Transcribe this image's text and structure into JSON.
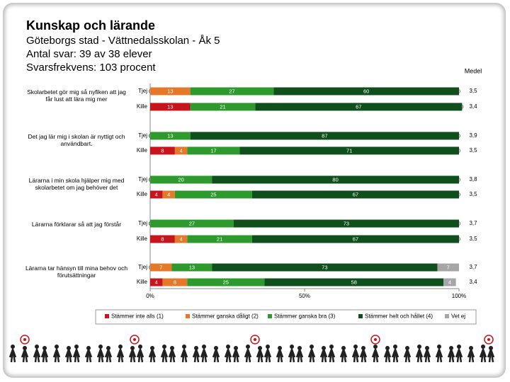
{
  "chart_data": {
    "type": "stacked-bar-horizontal",
    "title": "Kunskap och lärande",
    "subtitles": [
      "Göteborgs stad - Vättnedalsskolan - Åk 5",
      "Antal svar: 39 av 38 elever",
      "Svarsfrekvens: 103 procent"
    ],
    "mean_header": "Medel",
    "groups": [
      "Skolarbetet gör mig så nyfiken att jag får lust att lära mig mer",
      "Det jag lär mig i skolan är nyttigt och användbart.",
      "Lärarna i min skola hjälper mig med skolarbetet om jag behöver det",
      "Lärarna förklarar så att jag förstår",
      "Lärarna tar hänsyn till mina behov och förutsättningar"
    ],
    "categories": [
      "Tjej",
      "Kille",
      "Tjej",
      "Kille",
      "Tjej",
      "Kille",
      "Tjej",
      "Kille",
      "Tjej",
      "Kille"
    ],
    "series": [
      {
        "name": "Stämmer inte alls (1)",
        "color": "#c8141c",
        "values": [
          0,
          13,
          0,
          8,
          0,
          4,
          0,
          8,
          0,
          4
        ]
      },
      {
        "name": "Stämmer ganska dåligt (2)",
        "color": "#e4792c",
        "values": [
          13,
          0,
          0,
          4,
          0,
          4,
          0,
          4,
          7,
          8
        ]
      },
      {
        "name": "Stämmer ganska bra (3)",
        "color": "#2e9a2e",
        "values": [
          27,
          21,
          13,
          17,
          20,
          25,
          27,
          21,
          13,
          25
        ]
      },
      {
        "name": "Stämmer helt och hållet (4)",
        "color": "#0e4f1c",
        "values": [
          60,
          67,
          87,
          71,
          80,
          67,
          73,
          67,
          73,
          58
        ]
      },
      {
        "name": "Vet ej",
        "color": "#a6a6a6",
        "values": [
          0,
          0,
          0,
          0,
          0,
          0,
          0,
          0,
          7,
          4
        ]
      }
    ],
    "means": [
      {
        "value": 3.5,
        "label": "3,5"
      },
      {
        "value": 3.4,
        "label": "3,4"
      },
      {
        "value": 3.9,
        "label": "3,9"
      },
      {
        "value": 3.5,
        "label": "3,5"
      },
      {
        "value": 3.8,
        "label": "3,8"
      },
      {
        "value": 3.5,
        "label": "3,5"
      },
      {
        "value": 3.7,
        "label": "3,7"
      },
      {
        "value": 3.5,
        "label": "3,5"
      },
      {
        "value": 3.7,
        "label": "3,7"
      },
      {
        "value": 3.4,
        "label": "3,4"
      }
    ],
    "xlim": [
      0,
      100
    ],
    "xticks": [
      {
        "value": 0,
        "label": "0%"
      },
      {
        "value": 50,
        "label": "50%"
      },
      {
        "value": 100,
        "label": "100%"
      }
    ]
  }
}
